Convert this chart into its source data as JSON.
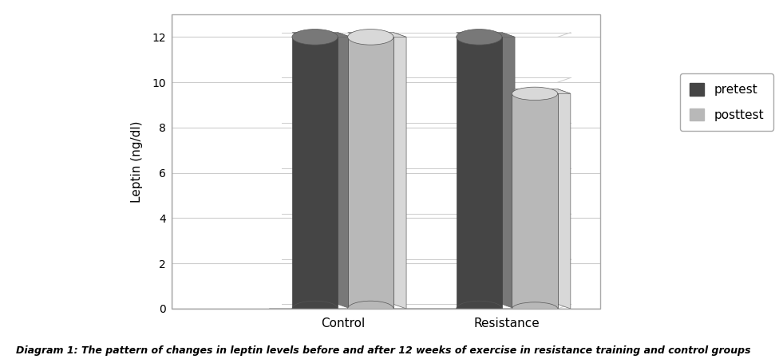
{
  "categories": [
    "Control",
    "Resistance"
  ],
  "pretest_values": [
    12.0,
    12.0
  ],
  "posttest_values": [
    12.0,
    9.5
  ],
  "pretest_color_main": "#454545",
  "pretest_color_light": "#606060",
  "posttest_color_main": "#b8b8b8",
  "posttest_color_light": "#d0d0d0",
  "ylabel": "Leptin (ng/dl)",
  "ylim": [
    0,
    13
  ],
  "yticks": [
    0,
    2,
    4,
    6,
    8,
    10,
    12
  ],
  "legend_labels": [
    "pretest",
    "posttest"
  ],
  "caption": "Diagram 1: The pattern of changes in leptin levels before and after 12 weeks of exercise in resistance training and control groups",
  "background_color": "#ffffff",
  "chart_bg": "#ffffff",
  "border_color": "#aaaaaa"
}
